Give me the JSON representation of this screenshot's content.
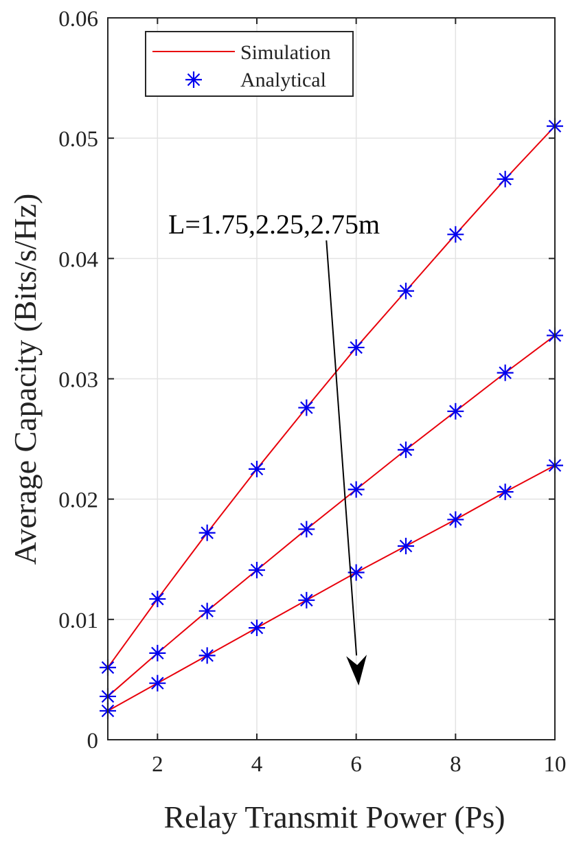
{
  "chart_data": {
    "type": "line",
    "title": "",
    "xlabel": "Relay Transmit Power  (Ps)",
    "ylabel": "Average Capacity (Bits/s/Hz)",
    "xlim": [
      1,
      10
    ],
    "ylim": [
      0,
      0.06
    ],
    "x_ticks": [
      2,
      4,
      6,
      8,
      10
    ],
    "y_ticks": [
      0,
      0.01,
      0.02,
      0.03,
      0.04,
      0.05,
      0.06
    ],
    "x_tick_labels": [
      "2",
      "4",
      "6",
      "8",
      "10"
    ],
    "y_tick_labels": [
      "0",
      "0.01",
      "0.02",
      "0.03",
      "0.04",
      "0.05",
      "0.06"
    ],
    "grid": true,
    "legend_position": "top-left",
    "legend": [
      {
        "label": "Simulation",
        "style": "line",
        "color": "#e8000b"
      },
      {
        "label": "Analytical",
        "style": "asterisk-marker",
        "color": "#0000ee"
      }
    ],
    "annotation": {
      "text": "L=1.75,2.25,2.75m",
      "arrow": {
        "from": [
          5.4,
          0.0415
        ],
        "to": [
          6.05,
          0.0045
        ]
      }
    },
    "x": [
      1,
      2,
      3,
      4,
      5,
      6,
      7,
      8,
      9,
      10
    ],
    "series": [
      {
        "values": [
          0.006,
          0.0117,
          0.0172,
          0.0225,
          0.0276,
          0.0326,
          0.0373,
          0.042,
          0.0466,
          0.051
        ]
      },
      {
        "values": [
          0.0036,
          0.0072,
          0.0107,
          0.0141,
          0.0175,
          0.0208,
          0.0241,
          0.0273,
          0.0305,
          0.0336
        ]
      },
      {
        "values": [
          0.0024,
          0.0047,
          0.007,
          0.0093,
          0.0116,
          0.0139,
          0.0161,
          0.0183,
          0.0206,
          0.0228
        ]
      }
    ],
    "colors": {
      "simulation": "#e8000b",
      "analytical": "#0000ee",
      "grid": "#e3e3e3",
      "axis": "#262626"
    }
  }
}
